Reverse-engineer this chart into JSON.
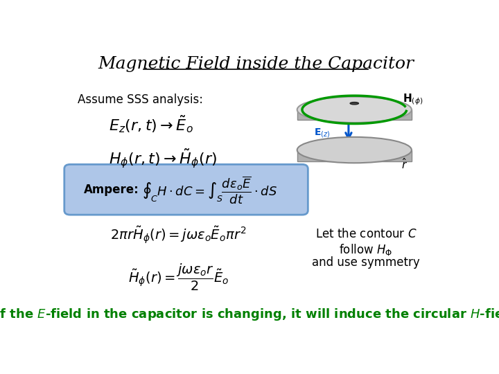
{
  "title": "Magnetic Field inside the Capacitor",
  "title_fontsize": 18,
  "title_color": "#000000",
  "background_color": "#ffffff",
  "assume_text": "Assume SSS analysis:",
  "eq1": "$E_z(r, t) \\rightarrow \\tilde{E}_o$",
  "eq2": "$H_\\phi(r, t) \\rightarrow \\tilde{H}_\\phi(r)$",
  "ampere_label": "Ampere:",
  "ampere_eq": "$\\oint_C H \\cdot dC = \\int_S \\dfrac{d\\epsilon_o \\overline{E}}{dt} \\cdot dS$",
  "eq3": "$2\\pi r \\tilde{H}_\\phi(r) = j\\omega\\epsilon_o \\tilde{E}_o \\pi r^2$",
  "eq4": "$\\tilde{H}_\\phi(r) = \\dfrac{j\\omega\\epsilon_o r}{2} \\tilde{E}_o$",
  "let_text_line1": "Let the contour $C$",
  "let_text_line2": "follow $H_\\Phi$",
  "let_text_line3": "and use symmetry",
  "bottom_color": "#008000",
  "box_facecolor": "#aec6e8",
  "box_edgecolor": "#6699cc"
}
